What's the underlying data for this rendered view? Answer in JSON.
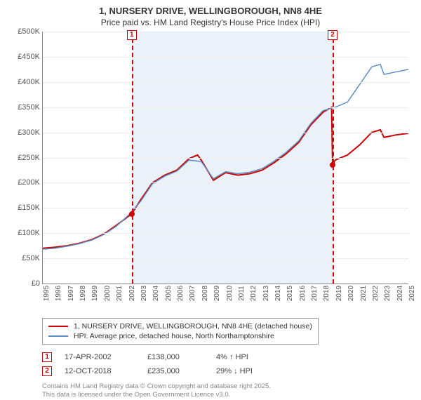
{
  "title": "1, NURSERY DRIVE, WELLINGBOROUGH, NN8 4HE",
  "subtitle": "Price paid vs. HM Land Registry's House Price Index (HPI)",
  "chart": {
    "type": "line",
    "background_color": "#ffffff",
    "shaded_band_color": "#eaf1f8",
    "grid_color": "#eeeeee",
    "axis_color": "#888888",
    "label_color": "#555555",
    "label_fontsize": 11,
    "x_years": [
      1995,
      1996,
      1997,
      1998,
      1999,
      2000,
      2001,
      2002,
      2003,
      2004,
      2005,
      2006,
      2007,
      2008,
      2009,
      2010,
      2011,
      2012,
      2013,
      2014,
      2015,
      2016,
      2017,
      2018,
      2019,
      2020,
      2021,
      2022,
      2023,
      2024,
      2025
    ],
    "xlim": [
      1995,
      2025
    ],
    "ylim": [
      0,
      500000
    ],
    "ytick_step": 50000,
    "yticks": [
      "£0",
      "£50K",
      "£100K",
      "£150K",
      "£200K",
      "£250K",
      "£300K",
      "£350K",
      "£400K",
      "£450K",
      "£500K"
    ],
    "shaded_range": [
      2002.29,
      2018.78
    ],
    "series": [
      {
        "name": "price_paid",
        "color": "#cc0000",
        "line_width": 2,
        "points": [
          [
            1995,
            70000
          ],
          [
            1996,
            72000
          ],
          [
            1997,
            75000
          ],
          [
            1998,
            80000
          ],
          [
            1999,
            87000
          ],
          [
            2000,
            98000
          ],
          [
            2001,
            115000
          ],
          [
            2002.29,
            138000
          ],
          [
            2003,
            165000
          ],
          [
            2004,
            200000
          ],
          [
            2005,
            215000
          ],
          [
            2006,
            225000
          ],
          [
            2007,
            248000
          ],
          [
            2007.7,
            255000
          ],
          [
            2008,
            245000
          ],
          [
            2009,
            205000
          ],
          [
            2010,
            220000
          ],
          [
            2011,
            215000
          ],
          [
            2012,
            218000
          ],
          [
            2013,
            225000
          ],
          [
            2014,
            240000
          ],
          [
            2015,
            258000
          ],
          [
            2016,
            280000
          ],
          [
            2017,
            315000
          ],
          [
            2018,
            340000
          ],
          [
            2018.7,
            350000
          ],
          [
            2018.78,
            235000
          ],
          [
            2019,
            245000
          ],
          [
            2020,
            255000
          ],
          [
            2021,
            275000
          ],
          [
            2022,
            300000
          ],
          [
            2022.7,
            305000
          ],
          [
            2023,
            290000
          ],
          [
            2024,
            295000
          ],
          [
            2025,
            298000
          ]
        ]
      },
      {
        "name": "hpi",
        "color": "#5b8fc7",
        "line_width": 1.5,
        "points": [
          [
            1995,
            68000
          ],
          [
            1996,
            70000
          ],
          [
            1997,
            74000
          ],
          [
            1998,
            79000
          ],
          [
            1999,
            86000
          ],
          [
            2000,
            97000
          ],
          [
            2001,
            113000
          ],
          [
            2002,
            135000
          ],
          [
            2003,
            162000
          ],
          [
            2004,
            198000
          ],
          [
            2005,
            213000
          ],
          [
            2006,
            223000
          ],
          [
            2007,
            245000
          ],
          [
            2008,
            242000
          ],
          [
            2009,
            208000
          ],
          [
            2010,
            222000
          ],
          [
            2011,
            218000
          ],
          [
            2012,
            221000
          ],
          [
            2013,
            228000
          ],
          [
            2014,
            243000
          ],
          [
            2015,
            261000
          ],
          [
            2016,
            283000
          ],
          [
            2017,
            318000
          ],
          [
            2018,
            343000
          ],
          [
            2019,
            350000
          ],
          [
            2020,
            360000
          ],
          [
            2021,
            395000
          ],
          [
            2022,
            430000
          ],
          [
            2022.7,
            435000
          ],
          [
            2023,
            415000
          ],
          [
            2024,
            420000
          ],
          [
            2025,
            425000
          ]
        ]
      }
    ],
    "markers": [
      {
        "id": "1",
        "x": 2002.29,
        "y": 138000
      },
      {
        "id": "2",
        "x": 2018.78,
        "y": 235000
      }
    ]
  },
  "legend": {
    "series1_label": "1, NURSERY DRIVE, WELLINGBOROUGH, NN8 4HE (detached house)",
    "series1_color": "#cc0000",
    "series2_label": "HPI: Average price, detached house, North Northamptonshire",
    "series2_color": "#5b8fc7"
  },
  "sales": [
    {
      "id": "1",
      "date": "17-APR-2002",
      "price": "£138,000",
      "delta": "4% ↑ HPI"
    },
    {
      "id": "2",
      "date": "12-OCT-2018",
      "price": "£235,000",
      "delta": "29% ↓ HPI"
    }
  ],
  "footer": {
    "line1": "Contains HM Land Registry data © Crown copyright and database right 2025.",
    "line2": "This data is licensed under the Open Government Licence v3.0."
  }
}
